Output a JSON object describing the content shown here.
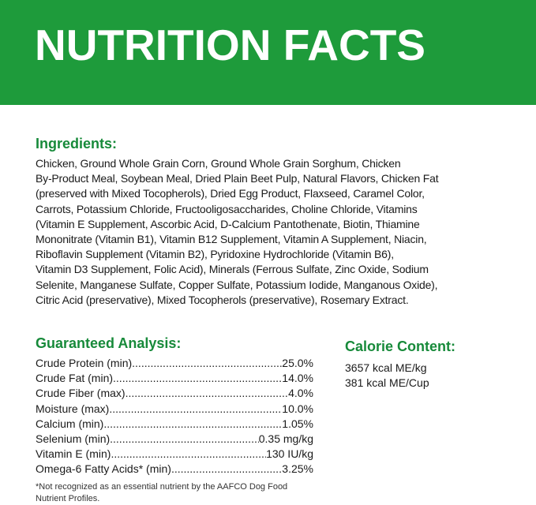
{
  "banner": {
    "title": "NUTRITION FACTS"
  },
  "ingredients": {
    "heading": "Ingredients:",
    "lines": [
      "Chicken, Ground Whole Grain Corn, Ground Whole Grain Sorghum, Chicken",
      "By-Product Meal, Soybean Meal, Dried Plain Beet Pulp, Natural Flavors, Chicken Fat",
      "(preserved with Mixed Tocopherols), Dried Egg Product, Flaxseed, Caramel Color,",
      "Carrots, Potassium Chloride, Fructooligosaccharides, Choline Chloride, Vitamins",
      "(Vitamin E Supplement, Ascorbic Acid, D-Calcium Pantothenate, Biotin, Thiamine",
      "Mononitrate (Vitamin B1), Vitamin B12 Supplement, Vitamin A Supplement, Niacin,",
      "Riboflavin Supplement (Vitamin B2), Pyridoxine Hydrochloride (Vitamin B6),",
      "Vitamin D3 Supplement, Folic Acid), Minerals (Ferrous Sulfate, Zinc Oxide, Sodium",
      "Selenite, Manganese Sulfate, Copper Sulfate, Potassium Iodide, Manganous Oxide),",
      "Citric Acid (preservative), Mixed Tocopherols (preservative), Rosemary Extract."
    ]
  },
  "analysis": {
    "heading": "Guaranteed Analysis:",
    "rows": [
      {
        "label": "Crude Protein (min)",
        "value": "25.0%"
      },
      {
        "label": "Crude Fat (min)",
        "value": "14.0%"
      },
      {
        "label": "Crude Fiber (max)",
        "value": "4.0%"
      },
      {
        "label": "Moisture (max)",
        "value": "10.0%"
      },
      {
        "label": "Calcium (min)",
        "value": "1.05%"
      },
      {
        "label": "Selenium (min)",
        "value": "0.35 mg/kg"
      },
      {
        "label": "Vitamin E (min)",
        "value": "130 IU/kg"
      },
      {
        "label": "Omega-6 Fatty Acids* (min)",
        "value": "3.25%"
      }
    ],
    "note_lines": [
      "*Not recognized as an essential nutrient by the AAFCO Dog Food",
      "Nutrient Profiles."
    ]
  },
  "calories": {
    "heading": "Calorie Content:",
    "lines": [
      "3657 kcal ME/kg",
      "381 kcal ME/Cup"
    ]
  }
}
